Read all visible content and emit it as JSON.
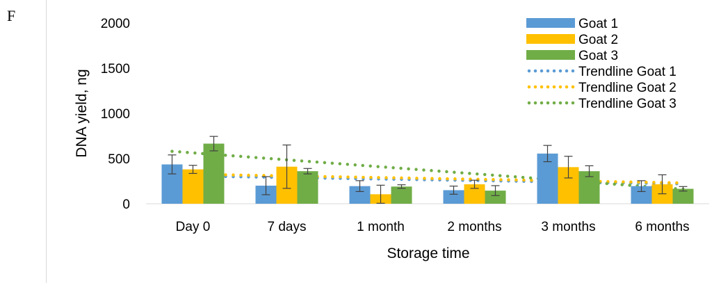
{
  "panel_label": "F",
  "chart_data": {
    "type": "bar",
    "title": "",
    "xlabel": "Storage time",
    "ylabel": "DNA yield, ng",
    "ylim": [
      0,
      2000
    ],
    "yticks": [
      0,
      500,
      1000,
      1500,
      2000
    ],
    "grid": false,
    "legend_position": "top-right",
    "categories": [
      "Day 0",
      "7 days",
      "1 month",
      "2 months",
      "3 months",
      "6 months"
    ],
    "series": [
      {
        "name": "Goat 1",
        "color": "#5b9bd5",
        "values": [
          435,
          200,
          195,
          150,
          555,
          195
        ],
        "errors": [
          105,
          100,
          60,
          45,
          90,
          60
        ]
      },
      {
        "name": "Goat 2",
        "color": "#ffc000",
        "values": [
          380,
          410,
          105,
          215,
          405,
          215
        ],
        "errors": [
          45,
          240,
          100,
          45,
          120,
          105
        ]
      },
      {
        "name": "Goat 3",
        "color": "#70ad47",
        "values": [
          665,
          360,
          190,
          145,
          360,
          165
        ],
        "errors": [
          80,
          30,
          20,
          55,
          60,
          25
        ]
      }
    ],
    "trendlines": [
      {
        "name": "Trendline Goat 1",
        "color": "#5b9bd5",
        "start": 310,
        "end": 220
      },
      {
        "name": "Trendline Goat 2",
        "color": "#ffc000",
        "start": 330,
        "end": 230
      },
      {
        "name": "Trendline Goat 3",
        "color": "#70ad47",
        "start": 580,
        "end": 160
      }
    ]
  }
}
